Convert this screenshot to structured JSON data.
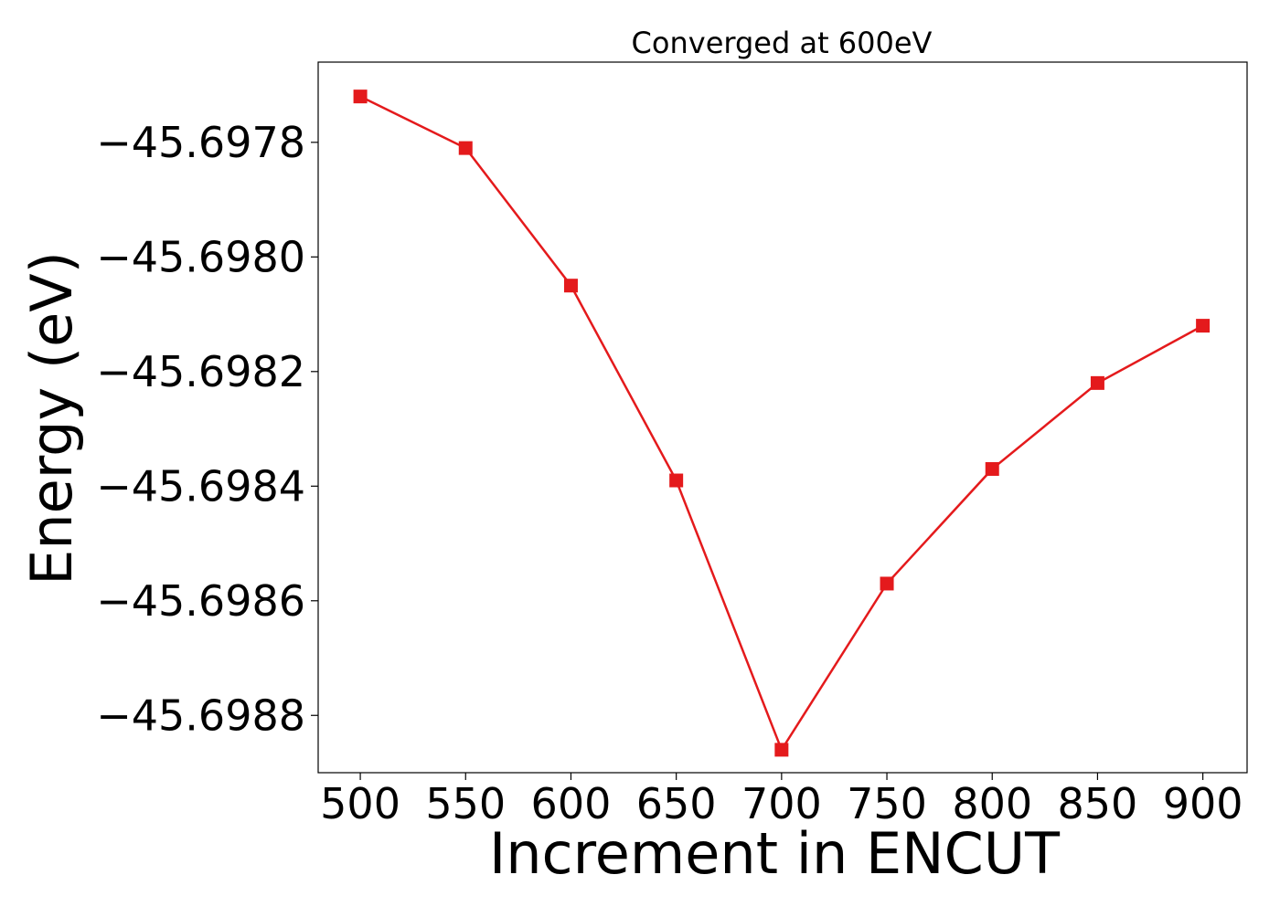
{
  "chart_data": {
    "type": "line",
    "title": "Converged at 600eV",
    "xlabel": "Increment in ENCUT",
    "ylabel": "Energy (eV)",
    "x": [
      500,
      550,
      600,
      650,
      700,
      750,
      800,
      850,
      900
    ],
    "series": [
      {
        "values": [
          -45.69772,
          -45.69781,
          -45.69805,
          -45.69839,
          -45.69886,
          -45.69857,
          -45.69837,
          -45.69822,
          -45.69812
        ],
        "color": "#e41a1c",
        "marker": "square"
      }
    ],
    "xticks": [
      500,
      550,
      600,
      650,
      700,
      750,
      800,
      850,
      900
    ],
    "xtick_labels": [
      "500",
      "550",
      "600",
      "650",
      "700",
      "750",
      "800",
      "850",
      "900"
    ],
    "yticks": [
      -45.6978,
      -45.698,
      -45.6982,
      -45.6984,
      -45.6986,
      -45.6988
    ],
    "ytick_labels": [
      "−45.6978",
      "−45.6980",
      "−45.6982",
      "−45.6984",
      "−45.6986",
      "−45.6988"
    ],
    "xlim": [
      480,
      921
    ],
    "ylim": [
      -45.6989,
      -45.69766
    ],
    "grid": false,
    "legend": "none"
  }
}
